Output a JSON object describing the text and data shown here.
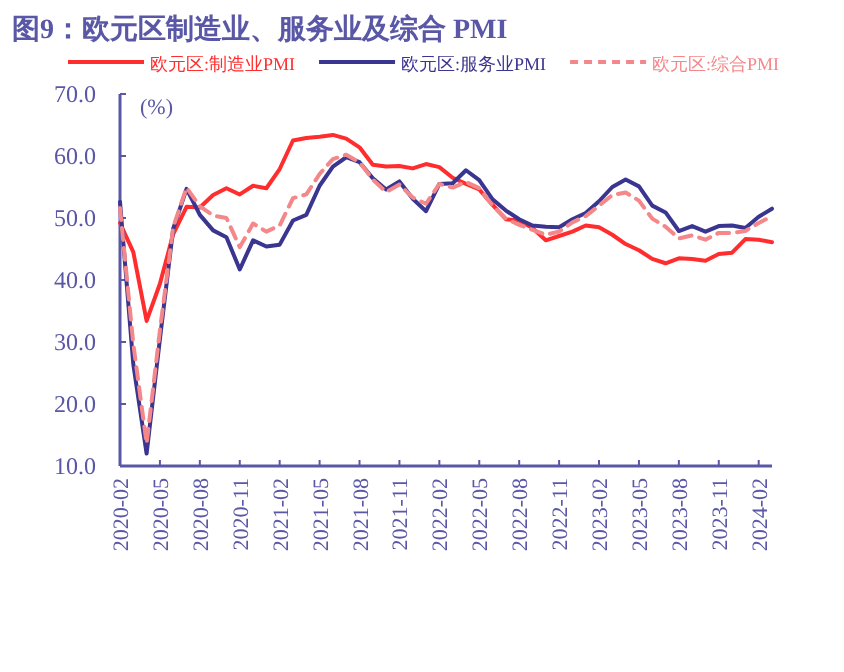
{
  "chart_data": {
    "type": "line",
    "title": "图9：欧元区制造业、服务业及综合 PMI",
    "ylabel": "(%)",
    "x": [
      "2020-02",
      "2020-03",
      "2020-04",
      "2020-05",
      "2020-06",
      "2020-07",
      "2020-08",
      "2020-09",
      "2020-10",
      "2020-11",
      "2020-12",
      "2021-01",
      "2021-02",
      "2021-03",
      "2021-04",
      "2021-05",
      "2021-06",
      "2021-07",
      "2021-08",
      "2021-09",
      "2021-10",
      "2021-11",
      "2021-12",
      "2022-01",
      "2022-02",
      "2022-03",
      "2022-04",
      "2022-05",
      "2022-06",
      "2022-07",
      "2022-08",
      "2022-09",
      "2022-10",
      "2022-11",
      "2022-12",
      "2023-01",
      "2023-02",
      "2023-03",
      "2023-04",
      "2023-05",
      "2023-06",
      "2023-07",
      "2023-08",
      "2023-09",
      "2023-10",
      "2023-11",
      "2023-12",
      "2024-01",
      "2024-02",
      "2024-03"
    ],
    "series": [
      {
        "name": "欧元区:制造业PMI",
        "color": "#ff2d2d",
        "line_style": "solid",
        "values": [
          49.2,
          44.5,
          33.4,
          39.4,
          47.4,
          51.8,
          51.7,
          53.7,
          54.8,
          53.8,
          55.2,
          54.8,
          57.9,
          62.5,
          62.9,
          63.1,
          63.4,
          62.8,
          61.4,
          58.6,
          58.3,
          58.4,
          58.0,
          58.7,
          58.2,
          56.5,
          55.5,
          54.6,
          52.1,
          49.8,
          49.6,
          48.4,
          46.4,
          47.1,
          47.8,
          48.8,
          48.5,
          47.3,
          45.8,
          44.8,
          43.4,
          42.7,
          43.5,
          43.4,
          43.1,
          44.2,
          44.4,
          46.6,
          46.5,
          46.1
        ]
      },
      {
        "name": "欧元区:服务业PMI",
        "color": "#3a3590",
        "line_style": "solid",
        "values": [
          52.6,
          26.4,
          12.0,
          30.5,
          48.3,
          54.7,
          50.5,
          48.0,
          46.9,
          41.7,
          46.4,
          45.4,
          45.7,
          49.6,
          50.5,
          55.2,
          58.3,
          59.8,
          59.0,
          56.4,
          54.6,
          55.9,
          53.1,
          51.1,
          55.5,
          55.6,
          57.7,
          56.1,
          53.0,
          51.2,
          49.8,
          48.8,
          48.6,
          48.5,
          49.8,
          50.8,
          52.7,
          55.0,
          56.2,
          55.1,
          52.0,
          50.9,
          47.9,
          48.7,
          47.8,
          48.7,
          48.8,
          48.4,
          50.2,
          51.5
        ]
      },
      {
        "name": "欧元区:综合PMI",
        "color": "#f4878a",
        "line_style": "dashed",
        "values": [
          51.6,
          29.7,
          13.6,
          31.9,
          48.5,
          54.9,
          51.9,
          50.4,
          50.0,
          45.3,
          49.1,
          47.8,
          48.8,
          53.2,
          53.8,
          57.1,
          59.5,
          60.2,
          59.0,
          56.2,
          54.2,
          55.4,
          53.3,
          52.3,
          55.5,
          54.9,
          55.8,
          54.8,
          52.0,
          49.9,
          48.9,
          48.1,
          47.3,
          47.8,
          49.3,
          50.3,
          52.0,
          53.7,
          54.1,
          52.8,
          49.9,
          48.6,
          46.7,
          47.2,
          46.5,
          47.6,
          47.6,
          47.9,
          49.2,
          50.3
        ]
      }
    ],
    "xlim": [
      "2020-02",
      "2024-03"
    ],
    "xticks": [
      "2020-02",
      "2020-05",
      "2020-08",
      "2020-11",
      "2021-02",
      "2021-05",
      "2021-08",
      "2021-11",
      "2022-02",
      "2022-05",
      "2022-08",
      "2022-11",
      "2023-02",
      "2023-05",
      "2023-08",
      "2023-11",
      "2024-02"
    ],
    "ylim": [
      10,
      70
    ],
    "yticks": [
      {
        "value": 10,
        "label": "10.0"
      },
      {
        "value": 20,
        "label": "20.0"
      },
      {
        "value": 30,
        "label": "30.0"
      },
      {
        "value": 40,
        "label": "40.0"
      },
      {
        "value": 50,
        "label": "50.0"
      },
      {
        "value": 60,
        "label": "60.0"
      },
      {
        "value": 70,
        "label": "70.0"
      }
    ],
    "grid": false,
    "legend": "top",
    "marker": "none"
  }
}
